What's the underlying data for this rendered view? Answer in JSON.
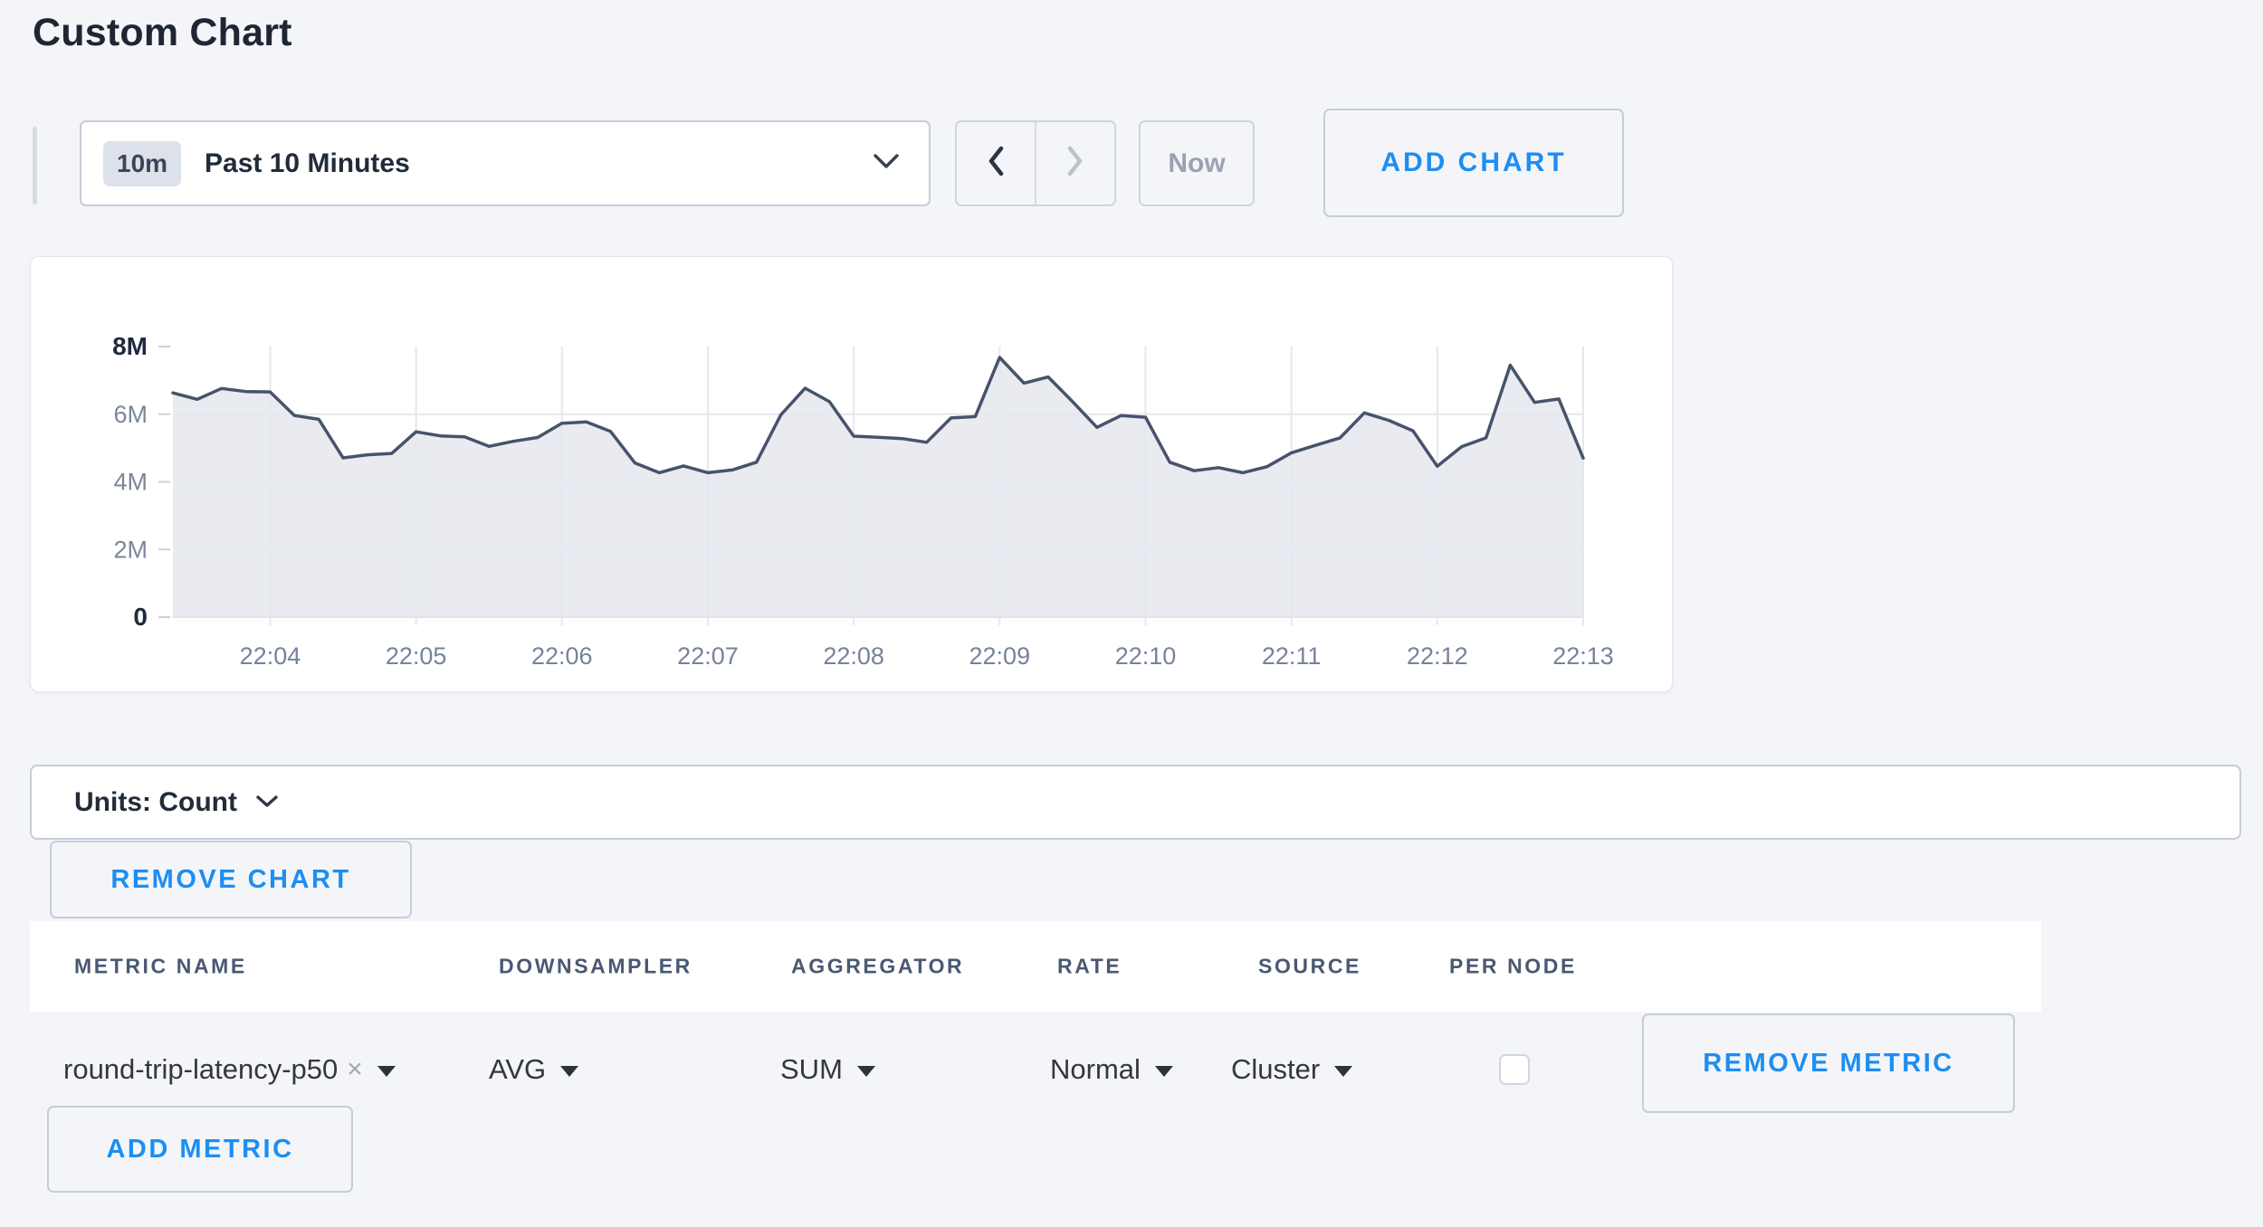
{
  "page": {
    "title": "Custom Chart",
    "background": "#f4f5f9",
    "accent_blue": "#1d8ef2"
  },
  "toolbar": {
    "time_window_badge": "10m",
    "time_window_label": "Past 10 Minutes",
    "now_label": "Now",
    "add_chart_label": "ADD CHART"
  },
  "icons": {
    "clear": "×",
    "chevron_down": "chevron-down",
    "chevron_left": "chevron-left",
    "chevron_right": "chevron-right",
    "caret_down": "filled-triangle-down"
  },
  "units_bar": {
    "label": "Units: Count"
  },
  "buttons": {
    "remove_chart": "REMOVE CHART",
    "remove_metric": "REMOVE METRIC",
    "add_metric": "ADD METRIC"
  },
  "metrics_table": {
    "columns": [
      "METRIC NAME",
      "DOWNSAMPLER",
      "AGGREGATOR",
      "RATE",
      "SOURCE",
      "PER NODE"
    ],
    "rows": [
      {
        "metric_name": "round-trip-latency-p50",
        "downsampler": "AVG",
        "aggregator": "SUM",
        "rate": "Normal",
        "source": "Cluster",
        "per_node_checked": false
      }
    ]
  },
  "chart_data": {
    "type": "area",
    "title": "",
    "xlabel": "",
    "ylabel": "",
    "unit": "Count",
    "grid": true,
    "ylim_millions": [
      0,
      8
    ],
    "y_ticks": [
      {
        "label": "0",
        "value_millions": 0,
        "bold": true,
        "gridline": false
      },
      {
        "label": "2M",
        "value_millions": 2,
        "bold": false,
        "gridline": true
      },
      {
        "label": "4M",
        "value_millions": 4,
        "bold": false,
        "gridline": true
      },
      {
        "label": "6M",
        "value_millions": 6,
        "bold": false,
        "gridline": true
      },
      {
        "label": "8M",
        "value_millions": 8,
        "bold": true,
        "gridline": false
      }
    ],
    "x_tick_labels": [
      "22:04",
      "22:05",
      "22:06",
      "22:07",
      "22:08",
      "22:09",
      "22:10",
      "22:11",
      "22:12",
      "22:13"
    ],
    "x_range": [
      "22:03:20",
      "22:13:00"
    ],
    "times": [
      "22:03:20",
      "22:03:30",
      "22:03:40",
      "22:03:50",
      "22:04:00",
      "22:04:10",
      "22:04:20",
      "22:04:30",
      "22:04:40",
      "22:04:50",
      "22:05:00",
      "22:05:10",
      "22:05:20",
      "22:05:30",
      "22:05:40",
      "22:05:50",
      "22:06:00",
      "22:06:10",
      "22:06:20",
      "22:06:30",
      "22:06:40",
      "22:06:50",
      "22:07:00",
      "22:07:10",
      "22:07:20",
      "22:07:30",
      "22:07:40",
      "22:07:50",
      "22:08:00",
      "22:08:10",
      "22:08:20",
      "22:08:30",
      "22:08:40",
      "22:08:50",
      "22:09:00",
      "22:09:10",
      "22:09:20",
      "22:09:30",
      "22:09:40",
      "22:09:50",
      "22:10:00",
      "22:10:10",
      "22:10:20",
      "22:10:30",
      "22:10:40",
      "22:10:50",
      "22:11:00",
      "22:11:10",
      "22:11:20",
      "22:11:30",
      "22:11:40",
      "22:11:50",
      "22:12:00",
      "22:12:10",
      "22:12:20",
      "22:12:30",
      "22:12:40",
      "22:12:50",
      "22:13:00"
    ],
    "values_millions": [
      6.63,
      6.44,
      6.76,
      6.67,
      6.66,
      5.96,
      5.85,
      4.71,
      4.8,
      4.84,
      5.48,
      5.36,
      5.33,
      5.05,
      5.2,
      5.31,
      5.73,
      5.77,
      5.49,
      4.56,
      4.27,
      4.47,
      4.27,
      4.35,
      4.58,
      5.98,
      6.77,
      6.37,
      5.35,
      5.32,
      5.28,
      5.17,
      5.89,
      5.93,
      7.68,
      6.92,
      7.1,
      6.37,
      5.61,
      5.96,
      5.91,
      4.58,
      4.33,
      4.42,
      4.27,
      4.45,
      4.86,
      5.08,
      5.3,
      6.04,
      5.82,
      5.51,
      4.46,
      5.04,
      5.3,
      7.45,
      6.35,
      6.45,
      4.7
    ],
    "colors": {
      "line": "#47536b",
      "fill": "#e9ebf1",
      "gridline": "#e4e8ef"
    }
  }
}
